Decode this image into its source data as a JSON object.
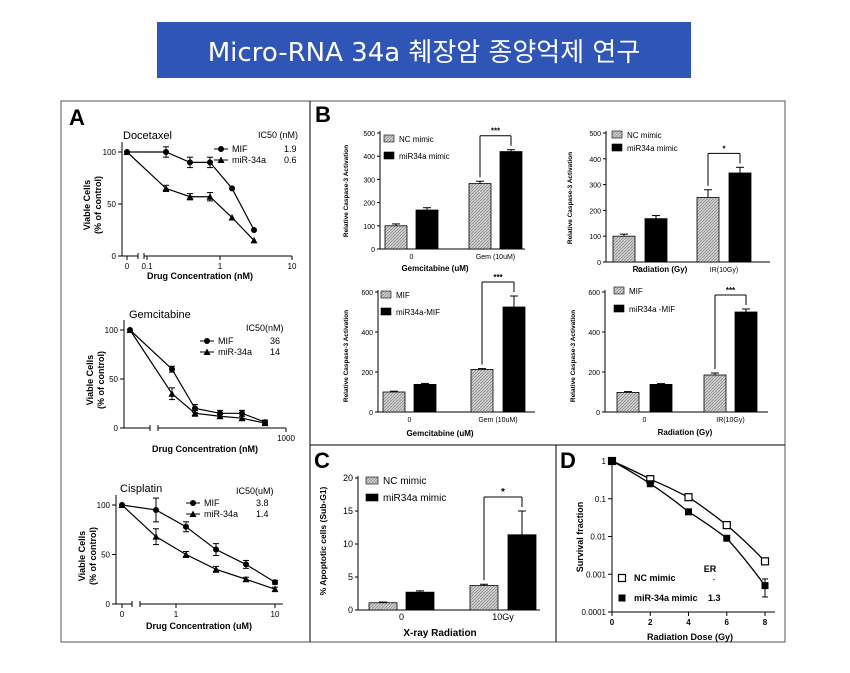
{
  "page_title": "Micro-RNA 34a 췌장암 종양억제 연구",
  "colors": {
    "title_bg": "#2f55b6",
    "title_text": "#ffffff",
    "bar_dark": "#000000",
    "bar_light": "#cccccc"
  },
  "panels": {
    "a": "A",
    "b": "B",
    "c": "C",
    "d": "D"
  },
  "chart_data": [
    {
      "id": "a1",
      "type": "line",
      "panel": "A",
      "title": "Docetaxel",
      "xlabel": "Drug Concentration (nM)",
      "ylabel": "Viable Cells (% of control)",
      "xscale": "log",
      "xticks": [
        "0",
        "0.1",
        "1",
        "10"
      ],
      "yticks": [
        0,
        50,
        100
      ],
      "ylim": [
        0,
        110
      ],
      "legend_title": "IC50 (nM)",
      "series": [
        {
          "name": "MIF",
          "ic50": "1.9",
          "marker": "circle",
          "x": [
            0,
            0.2,
            0.4,
            0.6,
            1.2,
            2.5
          ],
          "y": [
            100,
            100,
            90,
            90,
            65,
            25
          ],
          "err": [
            0,
            5,
            5,
            5,
            0,
            0
          ]
        },
        {
          "name": "miR-34a",
          "ic50": "0.6",
          "marker": "triangle",
          "x": [
            0,
            0.2,
            0.4,
            0.6,
            1.2,
            2.5
          ],
          "y": [
            100,
            65,
            57,
            57,
            37,
            15
          ],
          "err": [
            0,
            3,
            3,
            4,
            0,
            0
          ]
        }
      ]
    },
    {
      "id": "a2",
      "type": "line",
      "panel": "A",
      "title": "Gemcitabine",
      "xlabel": "Drug Concentration (nM)",
      "ylabel": "Viable Cells (% of control)",
      "xscale": "log",
      "xticks": [
        "1000"
      ],
      "yticks": [
        0,
        50,
        100
      ],
      "ylim": [
        0,
        110
      ],
      "legend_title": "IC50(nM)",
      "series": [
        {
          "name": "MIF",
          "ic50": "36",
          "marker": "circle",
          "x": [
            12,
            30,
            60,
            120,
            240,
            600
          ],
          "y": [
            100,
            60,
            20,
            15,
            15,
            6
          ],
          "err": [
            0,
            3,
            4,
            3,
            3,
            2
          ]
        },
        {
          "name": "miR-34a",
          "ic50": "14",
          "marker": "triangle",
          "x": [
            12,
            30,
            60,
            120,
            240,
            600
          ],
          "y": [
            100,
            35,
            15,
            12,
            10,
            5
          ],
          "err": [
            0,
            6,
            3,
            2,
            2,
            1
          ]
        }
      ]
    },
    {
      "id": "a3",
      "type": "line",
      "panel": "A",
      "title": "Cisplatin",
      "xlabel": "Drug Concentration (uM)",
      "ylabel": "Viable Cells (% of control)",
      "xscale": "log",
      "xticks": [
        "0",
        "1",
        "10"
      ],
      "yticks": [
        0,
        50,
        100
      ],
      "ylim": [
        0,
        110
      ],
      "legend_title": "IC50(uM)",
      "series": [
        {
          "name": "MIF",
          "ic50": "3.8",
          "marker": "circle",
          "x": [
            0,
            0.6,
            1.2,
            2.5,
            5,
            10
          ],
          "y": [
            100,
            95,
            78,
            55,
            40,
            22
          ],
          "err": [
            0,
            12,
            5,
            6,
            4,
            2
          ]
        },
        {
          "name": "miR-34a",
          "ic50": "1.4",
          "marker": "triangle",
          "x": [
            0,
            0.6,
            1.2,
            2.5,
            5,
            10
          ],
          "y": [
            100,
            68,
            50,
            35,
            25,
            15
          ],
          "err": [
            0,
            8,
            3,
            3,
            2,
            2
          ]
        }
      ]
    },
    {
      "id": "b1",
      "type": "bar",
      "panel": "B",
      "xlabel": "Gemcitabine (uM)",
      "ylabel": "Relative Caspase-3 Activation",
      "categories": [
        "0",
        "Gem (10uM)"
      ],
      "yticks": [
        0,
        100,
        200,
        300,
        400,
        500
      ],
      "ylim": [
        0,
        500
      ],
      "significance": "***",
      "series": [
        {
          "name": "NC mimic",
          "values": [
            100,
            282
          ],
          "err": [
            8,
            10
          ]
        },
        {
          "name": "miR34a mimic",
          "values": [
            168,
            420
          ],
          "err": [
            10,
            8
          ]
        }
      ]
    },
    {
      "id": "b2",
      "type": "bar",
      "panel": "B",
      "xlabel": "Radiation (Gy)",
      "ylabel": "Relative Caspase-3 Activation",
      "categories": [
        "0",
        "IR(10Gy)"
      ],
      "yticks": [
        0,
        100,
        200,
        300,
        400,
        500
      ],
      "ylim": [
        0,
        500
      ],
      "significance": "*",
      "series": [
        {
          "name": "NC mimic",
          "values": [
            100,
            250
          ],
          "err": [
            8,
            30
          ]
        },
        {
          "name": "miR34a mimic",
          "values": [
            168,
            345
          ],
          "err": [
            12,
            22
          ]
        }
      ]
    },
    {
      "id": "b3",
      "type": "bar",
      "panel": "B",
      "xlabel": "Gemcitabine (uM)",
      "ylabel": "Relative Caspase-3 Activation",
      "categories": [
        "0",
        "Gem (10uM)"
      ],
      "yticks": [
        0,
        200,
        400,
        600
      ],
      "ylim": [
        0,
        600
      ],
      "significance": "***",
      "series": [
        {
          "name": "MIF",
          "values": [
            100,
            213
          ],
          "err": [
            4,
            4
          ]
        },
        {
          "name": "miR34a-MIF",
          "values": [
            138,
            525
          ],
          "err": [
            5,
            55
          ]
        }
      ]
    },
    {
      "id": "b4",
      "type": "bar",
      "panel": "B",
      "xlabel": "Radiation (Gy)",
      "ylabel": "Relative Caspase-3 Activation",
      "categories": [
        "0",
        "IR(10Gy)"
      ],
      "yticks": [
        0,
        200,
        400,
        600
      ],
      "ylim": [
        0,
        600
      ],
      "significance": "***",
      "series": [
        {
          "name": "MIF",
          "values": [
            98,
            185
          ],
          "err": [
            4,
            10
          ]
        },
        {
          "name": "miR34a -MIF",
          "values": [
            138,
            500
          ],
          "err": [
            4,
            15
          ]
        }
      ]
    },
    {
      "id": "c",
      "type": "bar",
      "panel": "C",
      "xlabel": "X-ray Radiation",
      "ylabel": "% Apoptotic cells (Sub-G1)",
      "categories": [
        "0",
        "10Gy"
      ],
      "yticks": [
        0,
        5,
        10,
        15,
        20
      ],
      "ylim": [
        0,
        20
      ],
      "significance": "*",
      "series": [
        {
          "name": "NC mimic",
          "values": [
            1.1,
            3.7
          ],
          "err": [
            0.1,
            0.2
          ]
        },
        {
          "name": "miR34a mimic",
          "values": [
            2.7,
            11.4
          ],
          "err": [
            0.2,
            3.6
          ]
        }
      ]
    },
    {
      "id": "d",
      "type": "line",
      "panel": "D",
      "xlabel": "Radiation Dose (Gy)",
      "ylabel": "Survival fraction",
      "xticks": [
        0,
        2,
        4,
        6,
        8
      ],
      "xlim": [
        0,
        8.5
      ],
      "yscale": "log",
      "yticks": [
        "1",
        "0.1",
        "0.01",
        "0.001",
        "0.0001"
      ],
      "ylim": [
        0.0001,
        1
      ],
      "annotation": "ER",
      "series": [
        {
          "name": "NC mimic",
          "ratio": "",
          "marker": "open-square",
          "x": [
            0,
            2,
            4,
            6,
            8
          ],
          "y": [
            1,
            0.33,
            0.11,
            0.02,
            0.0022
          ],
          "err": [
            0,
            0,
            0,
            0,
            0
          ]
        },
        {
          "name": "miR-34a mimic",
          "ratio": "1.3",
          "marker": "filled-square",
          "x": [
            0,
            2,
            4,
            6,
            8
          ],
          "y": [
            1,
            0.25,
            0.045,
            0.009,
            0.0005
          ],
          "err": [
            0,
            0,
            0,
            0,
            0.00025
          ]
        }
      ]
    }
  ]
}
